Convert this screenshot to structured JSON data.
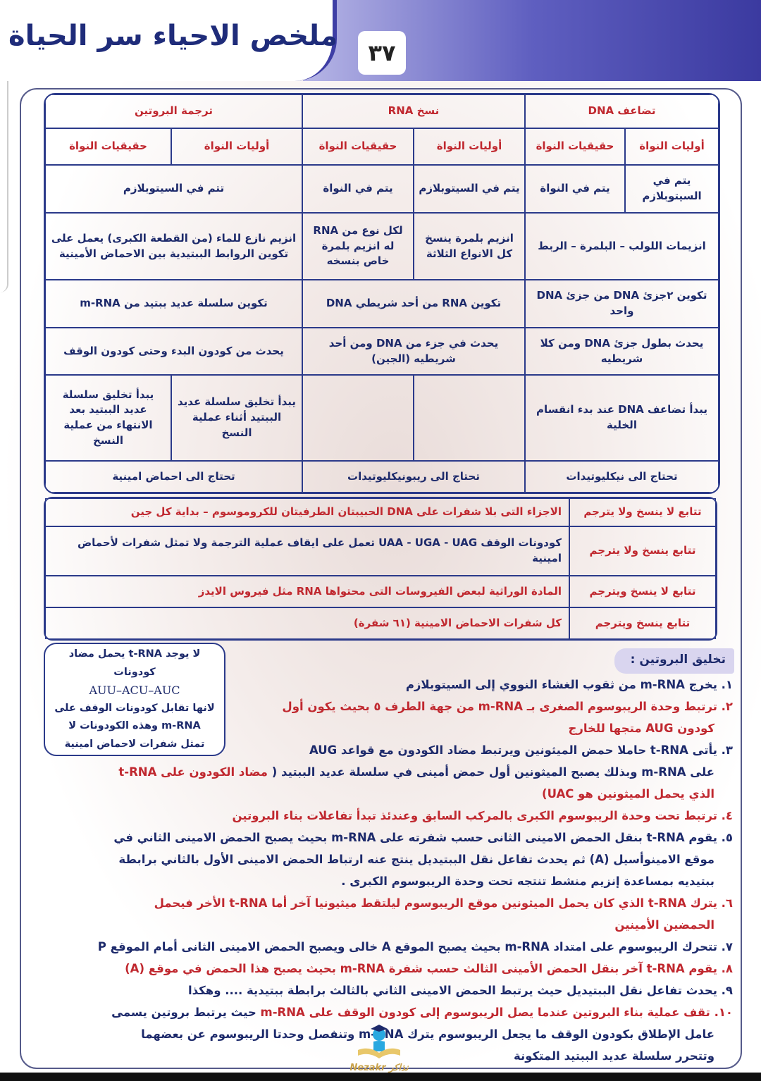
{
  "header": {
    "title": "ملخص الاحياء سر الحياة",
    "page_number": "٣٧"
  },
  "colors": {
    "blue": "#1d2a6b",
    "red": "#c0282f",
    "accent": "#3e3ea5"
  },
  "table1": {
    "headers": [
      "تضاعف DNA",
      "نسخ RNA",
      "ترجمة البروتين"
    ],
    "subheaders": [
      "أوليات النواة",
      "حقيقيات النواة",
      "أوليات النواة",
      "حقيقيات النواة",
      "أوليات النواة",
      "حقيقيات النواة"
    ],
    "location": [
      "يتم في السيتوبلازم",
      "يتم في النواة",
      "يتم في السيتوبلازم",
      "يتم في النواة",
      "تتم في السيتوبلازم"
    ],
    "enzymes": [
      "انزيمات اللولب – البلمرة – الربط",
      "انزيم بلمرة ينسخ كل الانواع الثلاثة",
      "لكل نوع من RNA له انزيم بلمرة خاص بنسخه",
      "انزيم نازع للماء (من القطعة الكبرى) يعمل على تكوين الروابط الببتيدية بين الاحماض الأمينية"
    ],
    "product": [
      "تكوين ٢جزئ DNA من جزئ DNA واحد",
      "تكوين RNA من أحد شريطي DNA",
      "تكوين سلسلة عديد ببتيد من m-RNA"
    ],
    "extent": [
      "يحدث بطول جزئ DNA ومن كلا شريطيه",
      "يحدث في جزء من DNA ومن أحد شريطيه (الجين)",
      "يحدث من كودون البدء وحتى كودون الوقف"
    ],
    "start": [
      "يبدأ تضاعف DNA عند بدء انقسام الخلية",
      "",
      "",
      "يبدأ تخليق سلسلة عديد الببتيد أثناء عملية النسخ",
      "يبدأ تخليق سلسلة عديد الببتيد بعد الانتهاء من عملية النسخ"
    ],
    "needs": [
      "تحتاج الى نيكليوتيدات",
      "تحتاج الى ريبونيكليوتيدات",
      "تحتاج الى احماض امينية"
    ]
  },
  "table2": {
    "rows": [
      {
        "label": "تتابع لا ينسخ ولا يترجم",
        "text": "الاجزاء التى بلا شفرات على DNA الحبيبتان الطرفيتان للكروموسوم – بداية كل جين",
        "red": true
      },
      {
        "label": "تتابع ينسخ ولا يترجم",
        "text": "كودونات الوقف UAA - UGA - UAG تعمل على ايقاف عملية الترجمة ولا تمثل شفرات لأحماض امينية",
        "red": false
      },
      {
        "label": "تتابع لا ينسخ ويترجم",
        "text": "المادة الوراثية لبعض الفيروسات التى محتواها RNA مثل فيروس الايدز",
        "red": true
      },
      {
        "label": "تتابع ينسخ ويترجم",
        "text": "كل شفرات الاحماض الامينية (٦١ شفرة)",
        "red": true
      }
    ]
  },
  "side_note": {
    "line1": "لا يوجد t-RNA يحمل مضاد",
    "line2": "كودونات",
    "codons": "AUU–ACU–AUC",
    "line3": "لانها تقابل كودونات الوقف على",
    "line4": "m-RNA وهذه الكودونات لا",
    "line5": "تمثل شفرات لاحماض امينية"
  },
  "section_title": "تخليق البروتين :",
  "lines": [
    {
      "segs": [
        {
          "t": "١.  يخرج m-RNA من ثقوب الغشاء النووي إلى السيتوبلازم",
          "c": "blue"
        }
      ]
    },
    {
      "segs": [
        {
          "t": "٢. ترتبط وحدة الريبوسوم الصغرى بـ m-RNA من جهة الطرف ٥ بحيث يكون أول",
          "c": "red"
        }
      ]
    },
    {
      "cont": true,
      "segs": [
        {
          "t": "كودون AUG  متجها للخارج",
          "c": "red"
        }
      ]
    },
    {
      "segs": [
        {
          "t": "٣. يأتى t-RNA حاملا حمض الميثونين ويرتبط مضاد الكودون مع قواعد AUG",
          "c": "blue"
        }
      ]
    },
    {
      "cont": true,
      "segs": [
        {
          "t": "على m-RNA وبذلك يصبح الميثونين أول حمض أمينى في سلسلة عديد الببتيد ( ",
          "c": "blue"
        },
        {
          "t": "مضاد الكودون على t-RNA",
          "c": "red"
        }
      ]
    },
    {
      "cont": true,
      "segs": [
        {
          "t": "الذي يحمل الميثونين هو UAC)",
          "c": "red"
        }
      ]
    },
    {
      "segs": [
        {
          "t": "٤. ترتبط تحت وحدة الريبوسوم الكبرى بالمركب السابق وعندئذ تبدأ تفاعلات بناء البروتين",
          "c": "red"
        }
      ]
    },
    {
      "segs": [
        {
          "t": "٥. يقوم t-RNA بنقل الحمض الامينى الثانى حسب شفرته على m-RNA بحيث يصبح الحمض الامينى الثاني في",
          "c": "blue"
        }
      ]
    },
    {
      "cont": true,
      "segs": [
        {
          "t": "موقع الامينوأسيل (A) ثم يحدث تفاعل نقل الببتيديل ينتج عنه ارتباط الحمض الامينى الأول بالثاني برابطة",
          "c": "blue"
        }
      ]
    },
    {
      "cont": true,
      "segs": [
        {
          "t": "ببتيديه بمساعدة إنزيم منشط تنتجه تحت وحدة الريبوسوم الكبرى .",
          "c": "blue"
        }
      ]
    },
    {
      "segs": [
        {
          "t": "٦. يترك t-RNA الذي كان يحمل الميثونين موقع الريبوسوم ليلتقط ميثيونيا آخر أما t-RNA الأخر فيحمل",
          "c": "red"
        }
      ]
    },
    {
      "cont": true,
      "segs": [
        {
          "t": "الحمضين الأمينين",
          "c": "red"
        }
      ]
    },
    {
      "segs": [
        {
          "t": "٧. تتحرك الريبوسوم على امتداد m-RNA بحيث يصبح الموقع A خالى ويصبح الحمض الامينى الثانى أمام الموقع P",
          "c": "blue"
        }
      ]
    },
    {
      "segs": [
        {
          "t": "٨. يقوم t-RNA آخر بنقل الحمض الأمينى الثالث حسب شفرة m-RNA بحيث يصبح هذا الحمض في موقع (A)",
          "c": "red"
        }
      ]
    },
    {
      "segs": [
        {
          "t": "٩. يحدث تفاعل نقل الببتيديل حيث يرتبط الحمض الامينى الثاني بالثالث برابطة ببتيدية .... وهكذا",
          "c": "blue"
        }
      ]
    },
    {
      "segs": [
        {
          "t": "١٠. تقف عملية بناء البروتين عندما يصل الريبوسوم إلى كودون الوقف على m-RNA",
          "c": "red"
        },
        {
          "t": " حيث يرتبط بروتين يسمى",
          "c": "blue"
        }
      ]
    },
    {
      "cont": true,
      "segs": [
        {
          "t": "عامل الإطلاق بكودون الوقف ما يجعل الريبوسوم يترك m-RNA وتنفصل وحدتا الريبوسوم عن بعضهما",
          "c": "blue"
        }
      ]
    },
    {
      "cont": true,
      "segs": [
        {
          "t": "وتتحرر سلسلة عديد الببتيد المتكونة",
          "c": "blue"
        }
      ]
    }
  ],
  "watermark": {
    "text": "Nezakr نذاكر"
  }
}
